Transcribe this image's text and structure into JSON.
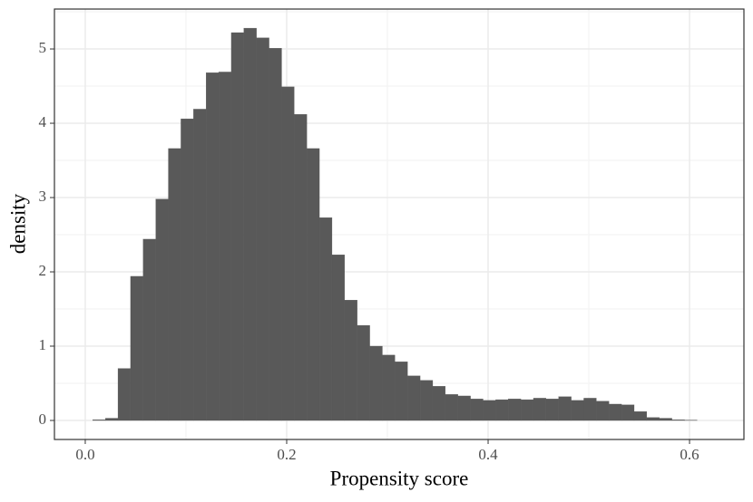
{
  "chart_data": {
    "type": "histogram",
    "x_label": "Propensity score",
    "y_label": "density",
    "bins": [
      0.0075,
      0.02,
      0.0325,
      0.045,
      0.0575,
      0.07,
      0.0825,
      0.095,
      0.1075,
      0.12,
      0.1325,
      0.145,
      0.1575,
      0.17,
      0.1825,
      0.195,
      0.2075,
      0.22,
      0.2325,
      0.245,
      0.2575,
      0.27,
      0.2825,
      0.295,
      0.3075,
      0.32,
      0.3325,
      0.345,
      0.3575,
      0.37,
      0.3825,
      0.395,
      0.4075,
      0.42,
      0.4325,
      0.445,
      0.4575,
      0.47,
      0.4825,
      0.495,
      0.5075,
      0.52,
      0.5325,
      0.545,
      0.5575,
      0.57,
      0.5825,
      0.595,
      0.6075
    ],
    "values": [
      0.01,
      0.03,
      0.7,
      1.94,
      2.44,
      2.98,
      3.66,
      4.06,
      4.19,
      4.68,
      4.69,
      5.22,
      5.28,
      5.15,
      5.01,
      4.49,
      4.12,
      3.66,
      2.73,
      2.23,
      1.62,
      1.28,
      1.0,
      0.88,
      0.79,
      0.6,
      0.54,
      0.46,
      0.35,
      0.33,
      0.29,
      0.27,
      0.28,
      0.29,
      0.28,
      0.3,
      0.29,
      0.32,
      0.27,
      0.3,
      0.26,
      0.22,
      0.21,
      0.12,
      0.04,
      0.03,
      0.01,
      0.005
    ],
    "color": "#595959",
    "xlim": [
      -0.0306,
      0.654
    ],
    "ylim": [
      -0.256,
      5.537
    ],
    "xticks": [
      {
        "value": 0,
        "label": "0.0"
      },
      0.2,
      0.4,
      0.6
    ],
    "yticks": [
      0,
      1,
      2,
      3,
      4,
      5
    ],
    "x_minor_ticks": [
      0.1,
      0.3,
      0.5
    ],
    "y_minor_ticks": [
      0.5,
      1.5,
      2.5,
      3.5,
      4.5,
      5.5
    ],
    "grid": true
  }
}
